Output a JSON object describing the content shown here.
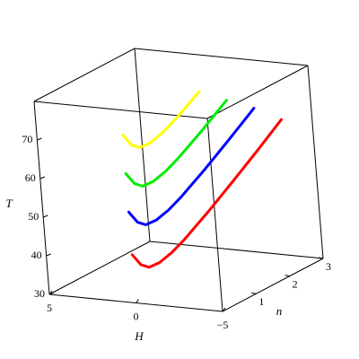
{
  "chart_data": {
    "type": "line3d",
    "x_label": "H",
    "y_label": "n",
    "z_label": "T",
    "xlim": [
      -5,
      5
    ],
    "ylim": [
      0,
      3
    ],
    "zlim": [
      30,
      80
    ],
    "xticks": [
      5,
      0,
      {
        "value": -5,
        "label": "−5"
      }
    ],
    "yticks": [
      1,
      2,
      3
    ],
    "zticks": [
      30,
      40,
      50,
      60,
      70
    ],
    "series": [
      {
        "color": "#ff0000",
        "x": [
          0,
          -0.16,
          -0.32,
          -0.54,
          -0.8,
          -1.07,
          -1.6,
          -2.14,
          -2.68,
          -3.21
        ],
        "y": [
          0,
          0.15,
          0.3,
          0.5,
          0.75,
          1,
          1.5,
          2,
          2.5,
          3
        ],
        "values": [
          42.5,
          39.3,
          38,
          38.4,
          40,
          42.3,
          47.6,
          53.3,
          59.2,
          65.2
        ]
      },
      {
        "color": "#0000ff",
        "x": [
          0,
          -0.16,
          -0.32,
          -0.54,
          -0.8,
          -1.07,
          -1.6,
          -2.14,
          -2.68
        ],
        "y": [
          0,
          0.15,
          0.3,
          0.5,
          0.75,
          1,
          1.5,
          2,
          2.5
        ],
        "values": [
          53.5,
          50.3,
          49,
          49.4,
          51,
          53.3,
          58.6,
          64.3,
          70.2
        ]
      },
      {
        "color": "#00ee00",
        "x": [
          0,
          -0.16,
          -0.32,
          -0.54,
          -0.8,
          -1.07,
          -1.6,
          -2.14
        ],
        "y": [
          0,
          0.15,
          0.3,
          0.5,
          0.75,
          1,
          1.5,
          2
        ],
        "values": [
          63.5,
          60.3,
          59,
          59.4,
          61,
          63.3,
          68.6,
          74.3
        ]
      },
      {
        "color": "#ffff00",
        "x": [
          0,
          -0.16,
          -0.32,
          -0.54,
          -0.8,
          -1.07,
          -1.6
        ],
        "y": [
          0,
          0.15,
          0.3,
          0.5,
          0.75,
          1,
          1.5
        ],
        "values": [
          73.5,
          70.3,
          69,
          69.4,
          71,
          73.3,
          78.6
        ]
      }
    ]
  }
}
